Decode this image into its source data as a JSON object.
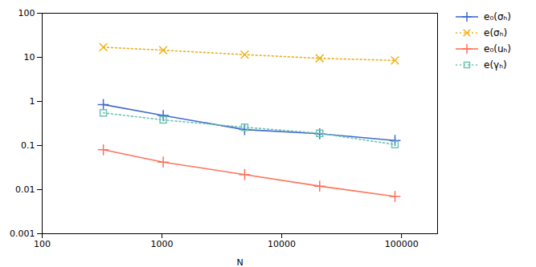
{
  "chart_data": {
    "type": "line",
    "xlabel": "N",
    "x": [
      324,
      1024,
      4900,
      20736,
      88209
    ],
    "series": [
      {
        "name": "e₀(σₕ)",
        "values": [
          0.85,
          0.48,
          0.23,
          0.185,
          0.13
        ],
        "marker": "plus",
        "line_style": "solid"
      },
      {
        "name": "e(σₕ)",
        "values": [
          17.0,
          14.5,
          11.5,
          9.5,
          8.5
        ],
        "marker": "x",
        "line_style": "dotted"
      },
      {
        "name": "e₀(uₕ)",
        "values": [
          0.08,
          0.042,
          0.022,
          0.012,
          0.007
        ],
        "marker": "plus",
        "line_style": "solid"
      },
      {
        "name": "e(γₕ)",
        "values": [
          0.55,
          0.38,
          0.26,
          0.19,
          0.105
        ],
        "marker": "square",
        "line_style": "dotted"
      }
    ],
    "log": true,
    "xlim": [
      100,
      200000
    ],
    "ylim": [
      0.001,
      100
    ],
    "xticks": [
      100,
      1000,
      10000,
      100000
    ],
    "yticks": [
      0.001,
      0.01,
      0.1,
      1,
      10,
      100
    ],
    "grid": false,
    "legend": "right"
  }
}
